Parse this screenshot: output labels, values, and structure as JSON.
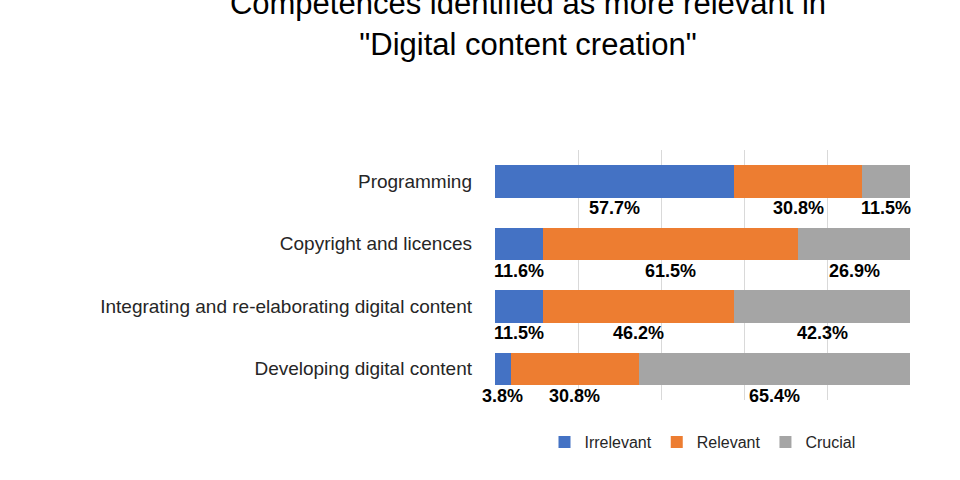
{
  "chart_data": {
    "type": "bar",
    "title": "Competences identified as more relevant in\n\"Digital content creation\"",
    "orientation": "horizontal",
    "stacked": true,
    "data_labels": true,
    "tick_labels": "y",
    "grid": true,
    "legend": "bottom",
    "categories": [
      "Programming",
      "Copyright and licences",
      "Integrating and re-elaborating digital content",
      "Developing digital content"
    ],
    "xlim": [
      0,
      100
    ],
    "xticks": [
      0,
      20,
      40,
      60,
      80,
      100
    ],
    "series": [
      {
        "name": "Irrelevant",
        "color": "#4472c4",
        "values": [
          57.7,
          11.6,
          11.5,
          3.8
        ],
        "value_labels": [
          "57.7%",
          "11.6%",
          "11.5%",
          "3.8%"
        ]
      },
      {
        "name": "Relevant",
        "color": "#ed7d31",
        "values": [
          30.8,
          61.5,
          46.2,
          30.8
        ],
        "value_labels": [
          "30.8%",
          "61.5%",
          "46.2%",
          "30.8%"
        ]
      },
      {
        "name": "Crucial",
        "color": "#a5a5a5",
        "values": [
          11.5,
          26.9,
          42.3,
          65.4
        ],
        "value_labels": [
          "11.5%",
          "26.9%",
          "42.3%",
          "65.4%"
        ]
      }
    ]
  }
}
